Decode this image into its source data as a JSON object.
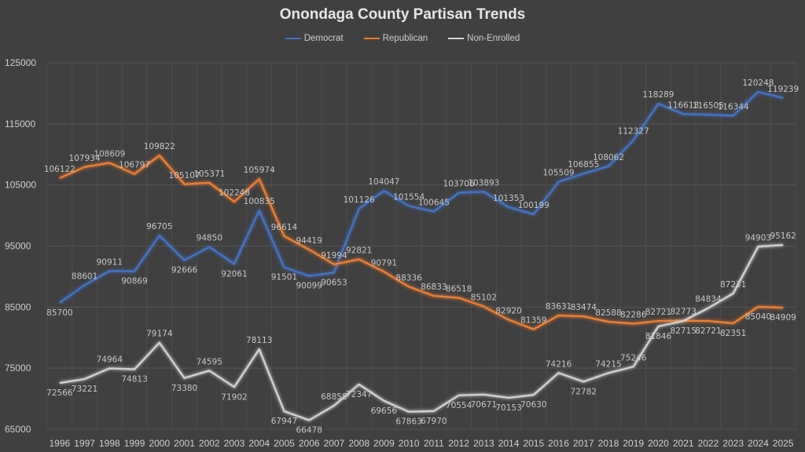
{
  "chart_data": {
    "type": "line",
    "title": "Onondaga County Partisan Trends",
    "xlabel": "",
    "ylabel": "",
    "ylim": [
      65000,
      125000
    ],
    "yticks": [
      65000,
      75000,
      85000,
      95000,
      105000,
      115000,
      125000
    ],
    "grid": true,
    "legend_position": "top",
    "categories": [
      "1996",
      "1997",
      "1998",
      "1999",
      "2000",
      "2001",
      "2002",
      "2003",
      "2004",
      "2005",
      "2006",
      "2007",
      "2008",
      "2009",
      "2010",
      "2011",
      "2012",
      "2013",
      "2014",
      "2015",
      "2016",
      "2017",
      "2018",
      "2019",
      "2020",
      "2021",
      "2022",
      "2023",
      "2024",
      "2025"
    ],
    "series": [
      {
        "name": "Democrat",
        "color": "#4472c4",
        "values": [
          85700,
          88601,
          90911,
          90869,
          96705,
          92666,
          94850,
          92061,
          100835,
          91501,
          90099,
          90653,
          101126,
          104047,
          101554,
          100645,
          103706,
          103893,
          101353,
          100199,
          105509,
          106855,
          108062,
          112327,
          118289,
          116613,
          116505,
          116344,
          120248,
          119239
        ]
      },
      {
        "name": "Republican",
        "color": "#ed7d31",
        "values": [
          106122,
          107934,
          108609,
          106797,
          109822,
          105107,
          105371,
          102248,
          105974,
          96614,
          94419,
          91994,
          92821,
          90791,
          88336,
          86833,
          86518,
          85102,
          82920,
          81359,
          83631,
          83474,
          82588,
          82286,
          82721,
          82773,
          82721,
          82351,
          85040,
          84909
        ]
      },
      {
        "name": "Non-Enrolled",
        "color": "#d0d0d0",
        "values": [
          72566,
          73221,
          74964,
          74813,
          79174,
          73380,
          74595,
          71902,
          78113,
          67947,
          66478,
          68858,
          72347,
          69656,
          67863,
          67970,
          70554,
          70671,
          70153,
          70630,
          74216,
          72782,
          74215,
          75246,
          81846,
          82715,
          84834,
          87231,
          94903,
          95162
        ]
      }
    ]
  }
}
